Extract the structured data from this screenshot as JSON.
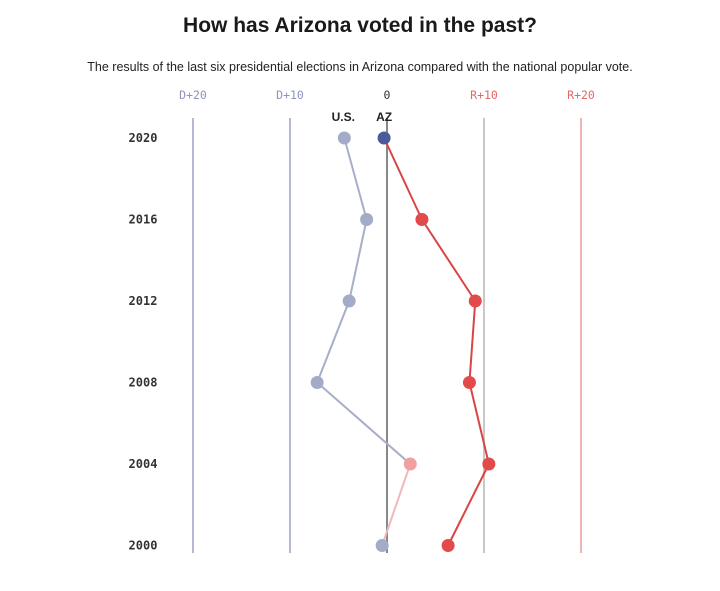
{
  "chart_data": {
    "type": "line",
    "title": "How has Arizona voted in the past?",
    "subtitle": "The results of the last six presidential elections in Arizona compared with the national popular vote.",
    "xaxis": {
      "range": [
        -20,
        20
      ],
      "ticks": [
        {
          "value": -20,
          "label": "D+20",
          "color": "#8f94bd"
        },
        {
          "value": -10,
          "label": "D+10",
          "color": "#8f94bd"
        },
        {
          "value": 0,
          "label": "0",
          "color": "#333333"
        },
        {
          "value": 10,
          "label": "R+10",
          "color": "#e06a6a"
        },
        {
          "value": 20,
          "label": "R+20",
          "color": "#e06a6a"
        }
      ]
    },
    "years": [
      "2020",
      "2016",
      "2012",
      "2008",
      "2004",
      "2000"
    ],
    "series": [
      {
        "name": "U.S.",
        "values": [
          -4.4,
          -2.1,
          -3.9,
          -7.2,
          2.4,
          -0.5
        ],
        "color": "#a4abc9",
        "line_color": "#a9aec8"
      },
      {
        "name": "AZ",
        "values": [
          -0.3,
          3.6,
          9.1,
          8.5,
          10.5,
          6.3
        ],
        "color": "#e34a4a",
        "line_color": "#d94545"
      }
    ],
    "az_2020_color": "#4a5a9a",
    "us_2004_color": "#f0a0a0"
  }
}
